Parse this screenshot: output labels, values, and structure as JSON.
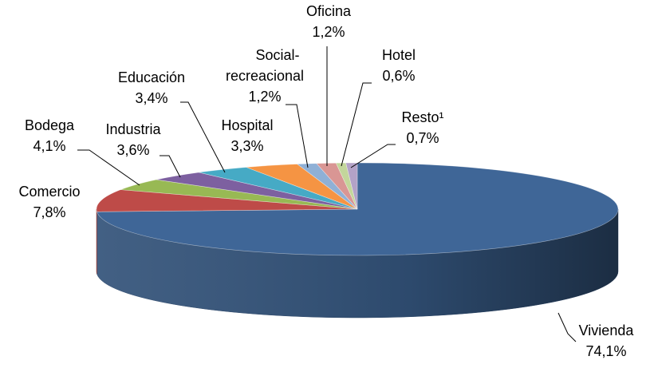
{
  "chart_data": {
    "type": "pie3d",
    "categories": [
      "Vivienda",
      "Comercio",
      "Bodega",
      "Industria",
      "Educación",
      "Hospital",
      "Social-recreacional",
      "Oficina",
      "Hotel",
      "Resto¹"
    ],
    "values": [
      74.1,
      7.8,
      4.1,
      3.6,
      3.4,
      3.3,
      1.2,
      1.2,
      0.6,
      0.7
    ],
    "value_labels": [
      "74,1%",
      "7,8%",
      "4,1%",
      "3,6%",
      "3,4%",
      "3,3%",
      "1,2%",
      "1,2%",
      "0,6%",
      "0,7%"
    ],
    "colors": [
      "#3f6697",
      "#be4b48",
      "#98b954",
      "#7d60a0",
      "#46aac5",
      "#f59443",
      "#8fb0d6",
      "#d99694",
      "#c3d69b",
      "#b3a2c7"
    ]
  }
}
